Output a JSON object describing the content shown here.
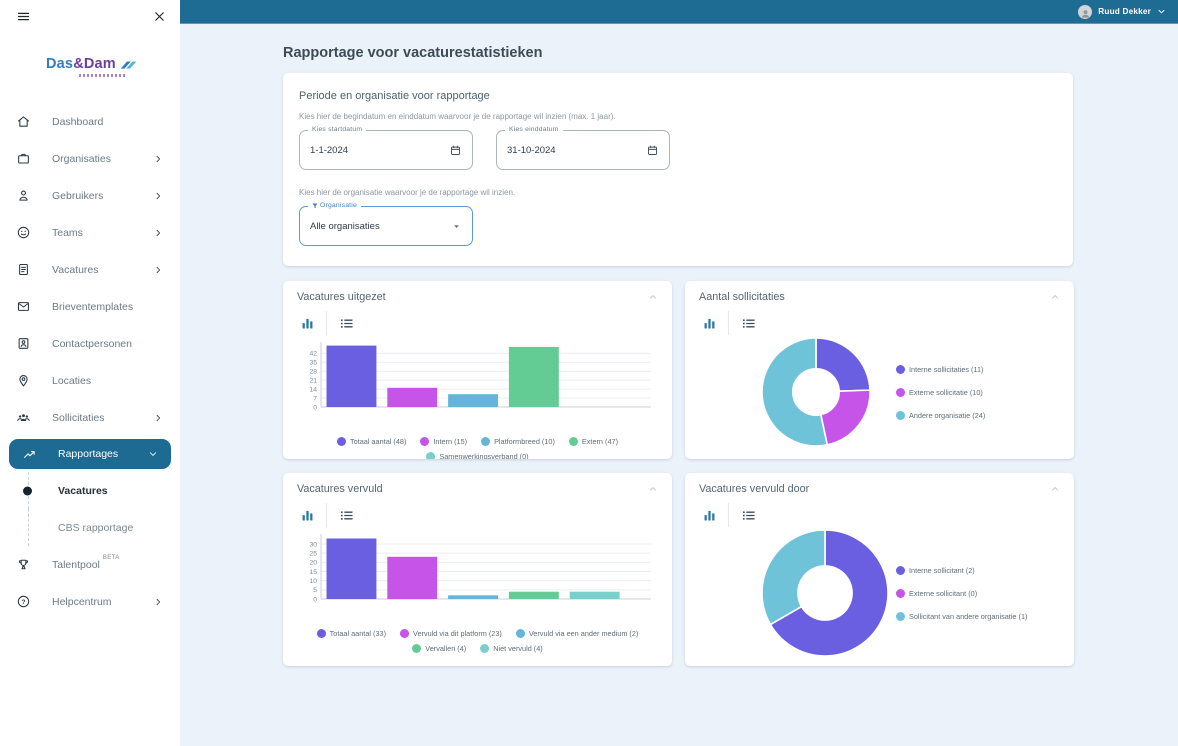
{
  "topbar": {
    "user_name": "Ruud Dekker"
  },
  "sidebar": {
    "logo": {
      "das": "Das",
      "amp": "&",
      "dam": "Dam"
    },
    "items": [
      {
        "label": "Dashboard",
        "icon": "home"
      },
      {
        "label": "Organisaties",
        "icon": "briefcase",
        "chevron": "right"
      },
      {
        "label": "Gebruikers",
        "icon": "person",
        "chevron": "right"
      },
      {
        "label": "Teams",
        "icon": "teams",
        "chevron": "right"
      },
      {
        "label": "Vacatures",
        "icon": "document",
        "chevron": "right"
      },
      {
        "label": "Brieventemplates",
        "icon": "mail"
      },
      {
        "label": "Contactpersonen",
        "icon": "contact-card"
      },
      {
        "label": "Locaties",
        "icon": "location-pin"
      },
      {
        "label": "Sollicitaties",
        "icon": "people",
        "chevron": "right"
      },
      {
        "label": "Rapportages",
        "icon": "trend",
        "chevron": "down",
        "active": true
      },
      {
        "label": "Vacatures",
        "sub": true,
        "current": true
      },
      {
        "label": "CBS rapportage",
        "sub": true
      },
      {
        "label": "Talentpool",
        "icon": "trophy",
        "badge": "BETA"
      },
      {
        "label": "Helpcentrum",
        "icon": "help",
        "chevron": "right"
      }
    ]
  },
  "page": {
    "title": "Rapportage voor vacaturestatistieken"
  },
  "filter_card": {
    "title": "Periode en organisatie voor rapportage",
    "help_dates": "Kies hier de begindatum en einddatum waarvoor je de rapportage wil inzien (max. 1 jaar).",
    "start_date": {
      "label": "Kies startdatum",
      "value": "1-1-2024"
    },
    "end_date": {
      "label": "Kies einddatum",
      "value": "31-10-2024"
    },
    "help_org": "Kies hier de organisatie waarvoor je de rapportage wil inzien.",
    "organisation": {
      "label": "Organisatie",
      "value": "Alle organisaties"
    }
  },
  "chart_data": [
    {
      "type": "bar",
      "title": "Vacatures uitgezet",
      "categories": [
        "Totaal aantal",
        "Intern",
        "Platformbreed",
        "Extern",
        "Samenwerkingsverband"
      ],
      "values": [
        48,
        15,
        10,
        47,
        0
      ],
      "colors": [
        "#6a5fe0",
        "#c654e8",
        "#64b5d9",
        "#63cb94",
        "#79cfca"
      ],
      "yticks": [
        0,
        7,
        14,
        21,
        28,
        35,
        42
      ],
      "ymax": 48.5,
      "legend": [
        {
          "label": "Totaal aantal (48)",
          "color": "#6a5fe0"
        },
        {
          "label": "Intern (15)",
          "color": "#c654e8"
        },
        {
          "label": "Platformbreed (10)",
          "color": "#64b5d9"
        },
        {
          "label": "Extern (47)",
          "color": "#63cb94"
        },
        {
          "label": "Samenwerkingsverband (0)",
          "color": "#79cfca"
        }
      ]
    },
    {
      "type": "donut",
      "title": "Aantal sollicitaties",
      "labels": [
        "Interne sollicitaties",
        "Externe sollicitatie",
        "Andere organisatie"
      ],
      "values": [
        11,
        10,
        24
      ],
      "colors": [
        "#6a5fe0",
        "#c654e8",
        "#6fc3d9"
      ],
      "size": 110,
      "legend": [
        {
          "label": "Interne sollicitaties (11)",
          "color": "#6a5fe0"
        },
        {
          "label": "Externe sollicitatie (10)",
          "color": "#c654e8"
        },
        {
          "label": "Andere organisatie (24)",
          "color": "#6fc3d9"
        }
      ]
    },
    {
      "type": "bar",
      "title": "Vacatures vervuld",
      "categories": [
        "Totaal aantal",
        "Vervuld via dit platform",
        "Vervuld via een ander medium",
        "Vervallen",
        "Niet vervuld"
      ],
      "values": [
        33,
        23,
        2,
        4,
        4
      ],
      "colors": [
        "#6a5fe0",
        "#c654e8",
        "#64b5d9",
        "#63cb94",
        "#79cfca"
      ],
      "yticks": [
        0,
        5,
        10,
        15,
        20,
        25,
        30
      ],
      "ymax": 33.8,
      "legend": [
        {
          "label": "Totaal aantal (33)",
          "color": "#6a5fe0"
        },
        {
          "label": "Vervuld via dit platform (23)",
          "color": "#c654e8"
        },
        {
          "label": "Vervuld via een ander medium (2)",
          "color": "#64b5d9"
        },
        {
          "label": "Vervallen (4)",
          "color": "#63cb94"
        },
        {
          "label": "Niet vervuld (4)",
          "color": "#79cfca"
        }
      ]
    },
    {
      "type": "donut",
      "title": "Vacatures vervuld door",
      "labels": [
        "Interne sollicitant",
        "Externe sollicitant",
        "Sollicitant van andere organisatie"
      ],
      "values": [
        2,
        0,
        1
      ],
      "colors": [
        "#6a5fe0",
        "#c654e8",
        "#6fc3d9"
      ],
      "size": 128,
      "legend": [
        {
          "label": "Interne sollicitant (2)",
          "color": "#6a5fe0"
        },
        {
          "label": "Externe sollicitant (0)",
          "color": "#c654e8"
        },
        {
          "label": "Sollicitant van andere organisatie (1)",
          "color": "#6fc3d9"
        }
      ]
    }
  ],
  "colors": {
    "topbar": "#1e6b93",
    "toolbar_active": "#2679a1",
    "background": "#ecf2fa"
  }
}
